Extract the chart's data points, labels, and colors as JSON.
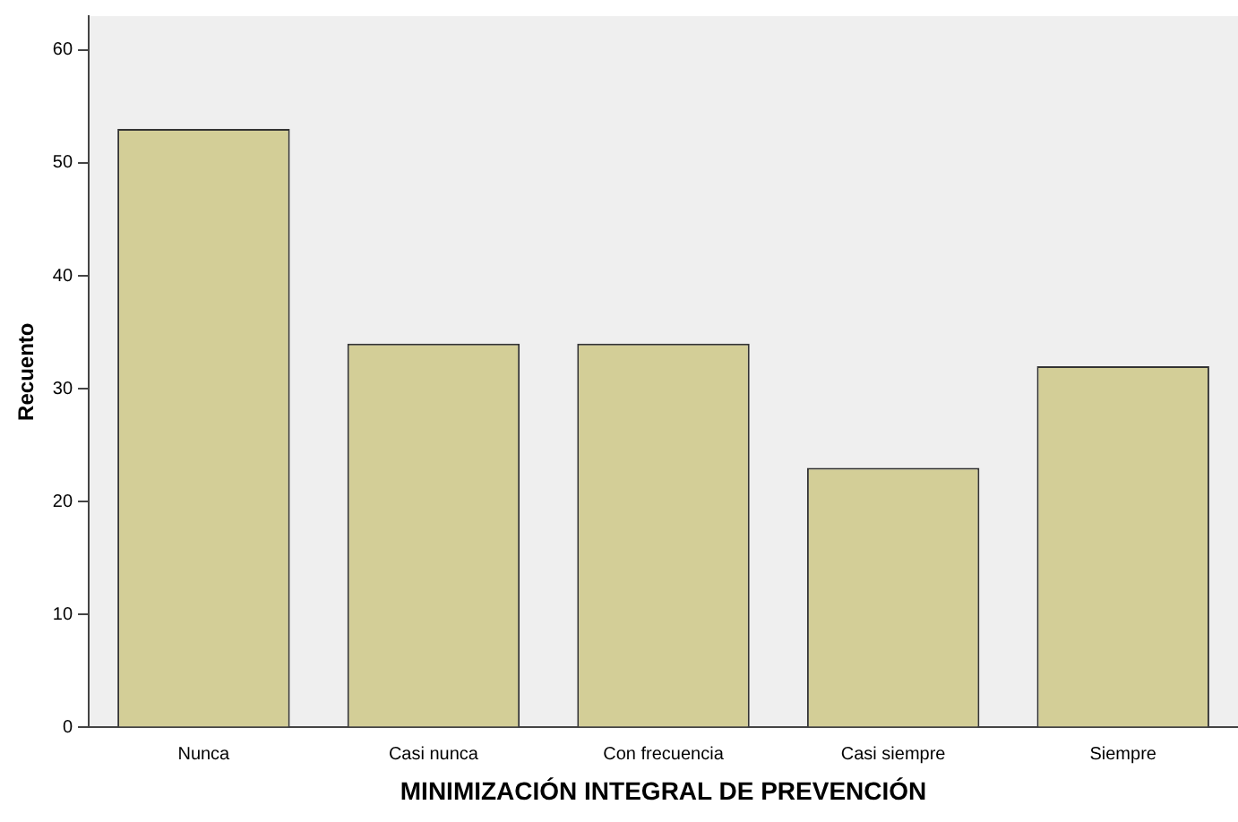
{
  "chart_data": {
    "type": "bar",
    "xlabel": "MINIMIZACIÓN INTEGRAL DE PREVENCIÓN",
    "ylabel": "Recuento",
    "categories": [
      "Nunca",
      "Casi nunca",
      "Con frecuencia",
      "Casi siempre",
      "Siempre"
    ],
    "values": [
      53,
      34,
      34,
      23,
      32
    ],
    "color": "#d3ce97",
    "ylim": [
      0,
      63
    ],
    "yticks": [
      0,
      10,
      20,
      30,
      40,
      50,
      60
    ],
    "grid": false,
    "legend": false
  }
}
